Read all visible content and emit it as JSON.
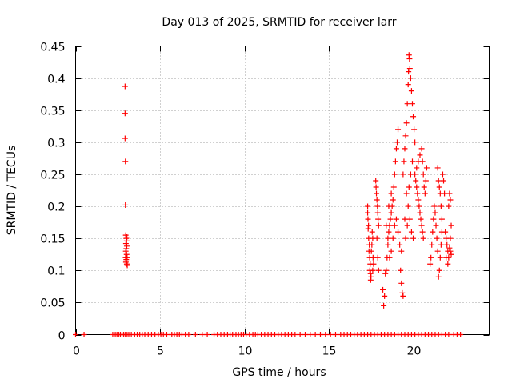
{
  "chart_data": {
    "type": "scatter",
    "title": "Day 013 of 2025, SRMTID for receiver larr",
    "xlabel": "GPS time / hours",
    "ylabel": "SRMTID / TECUs",
    "xlim": [
      0,
      24.5
    ],
    "ylim": [
      0,
      0.45
    ],
    "x_ticks": [
      0,
      5,
      10,
      15,
      20
    ],
    "x_tick_labels": [
      "0",
      "5",
      "10",
      "15",
      "20"
    ],
    "y_ticks": [
      0,
      0.05,
      0.1,
      0.15,
      0.2,
      0.25,
      0.3,
      0.35,
      0.4,
      0.45
    ],
    "y_tick_labels": [
      "0",
      "0.05",
      "0.1",
      "0.15",
      "0.2",
      "0.25",
      "0.3",
      "0.35",
      "0.4",
      "0.45"
    ],
    "grid": true,
    "marker": "+",
    "color": "#ff0000",
    "series": [
      {
        "name": "SRMTID",
        "points": [
          [
            0.0,
            0
          ],
          [
            0.5,
            0
          ],
          [
            2.2,
            0
          ],
          [
            2.35,
            0
          ],
          [
            2.45,
            0
          ],
          [
            2.55,
            0
          ],
          [
            2.65,
            0
          ],
          [
            2.75,
            0
          ],
          [
            2.85,
            0
          ],
          [
            2.95,
            0
          ],
          [
            3.05,
            0
          ],
          [
            3.15,
            0
          ],
          [
            3.3,
            0
          ],
          [
            3.5,
            0
          ],
          [
            3.65,
            0
          ],
          [
            3.8,
            0
          ],
          [
            3.95,
            0
          ],
          [
            4.1,
            0
          ],
          [
            4.3,
            0
          ],
          [
            4.5,
            0
          ],
          [
            4.7,
            0
          ],
          [
            4.9,
            0
          ],
          [
            5.05,
            0
          ],
          [
            5.2,
            0
          ],
          [
            5.4,
            0
          ],
          [
            5.7,
            0
          ],
          [
            5.85,
            0
          ],
          [
            6.0,
            0
          ],
          [
            6.15,
            0
          ],
          [
            6.3,
            0
          ],
          [
            6.5,
            0
          ],
          [
            6.7,
            0
          ],
          [
            7.1,
            0
          ],
          [
            7.5,
            0
          ],
          [
            7.8,
            0
          ],
          [
            8.2,
            0
          ],
          [
            8.4,
            0
          ],
          [
            8.6,
            0
          ],
          [
            8.8,
            0
          ],
          [
            9.0,
            0
          ],
          [
            9.15,
            0
          ],
          [
            9.3,
            0
          ],
          [
            9.5,
            0
          ],
          [
            9.65,
            0
          ],
          [
            9.8,
            0
          ],
          [
            9.95,
            0
          ],
          [
            10.1,
            0
          ],
          [
            10.3,
            0
          ],
          [
            10.5,
            0
          ],
          [
            10.65,
            0
          ],
          [
            10.8,
            0
          ],
          [
            11.0,
            0
          ],
          [
            11.2,
            0
          ],
          [
            11.4,
            0
          ],
          [
            11.6,
            0
          ],
          [
            11.8,
            0
          ],
          [
            12.0,
            0
          ],
          [
            12.2,
            0
          ],
          [
            12.4,
            0
          ],
          [
            12.6,
            0
          ],
          [
            12.8,
            0
          ],
          [
            13.0,
            0
          ],
          [
            13.3,
            0
          ],
          [
            13.6,
            0
          ],
          [
            13.9,
            0
          ],
          [
            14.2,
            0
          ],
          [
            14.5,
            0
          ],
          [
            14.8,
            0
          ],
          [
            15.1,
            0
          ],
          [
            15.4,
            0
          ],
          [
            15.7,
            0
          ],
          [
            15.9,
            0
          ],
          [
            16.1,
            0
          ],
          [
            16.3,
            0
          ],
          [
            16.5,
            0
          ],
          [
            16.7,
            0
          ],
          [
            16.9,
            0
          ],
          [
            17.1,
            0
          ],
          [
            17.3,
            0
          ],
          [
            17.5,
            0
          ],
          [
            17.7,
            0
          ],
          [
            17.9,
            0
          ],
          [
            18.1,
            0
          ],
          [
            18.3,
            0
          ],
          [
            18.5,
            0
          ],
          [
            18.7,
            0
          ],
          [
            18.9,
            0
          ],
          [
            19.1,
            0
          ],
          [
            19.3,
            0
          ],
          [
            19.5,
            0
          ],
          [
            19.7,
            0
          ],
          [
            19.9,
            0
          ],
          [
            20.1,
            0
          ],
          [
            20.3,
            0
          ],
          [
            20.5,
            0
          ],
          [
            20.7,
            0
          ],
          [
            20.9,
            0
          ],
          [
            21.1,
            0
          ],
          [
            21.3,
            0
          ],
          [
            21.5,
            0
          ],
          [
            21.7,
            0
          ],
          [
            21.9,
            0
          ],
          [
            22.1,
            0
          ],
          [
            22.4,
            0
          ],
          [
            22.6,
            0
          ],
          [
            22.8,
            0
          ],
          [
            2.93,
            0.387
          ],
          [
            2.93,
            0.345
          ],
          [
            2.93,
            0.306
          ],
          [
            2.95,
            0.27
          ],
          [
            2.95,
            0.202
          ],
          [
            2.97,
            0.155
          ],
          [
            3.0,
            0.15
          ],
          [
            3.02,
            0.146
          ],
          [
            2.98,
            0.142
          ],
          [
            3.03,
            0.138
          ],
          [
            3.0,
            0.134
          ],
          [
            2.97,
            0.13
          ],
          [
            3.02,
            0.125
          ],
          [
            3.05,
            0.12
          ],
          [
            3.0,
            0.117
          ],
          [
            2.98,
            0.113
          ],
          [
            3.03,
            0.11
          ],
          [
            3.06,
            0.108
          ],
          [
            2.96,
            0.12
          ],
          [
            3.04,
            0.152
          ],
          [
            17.3,
            0.2
          ],
          [
            17.3,
            0.19
          ],
          [
            17.32,
            0.18
          ],
          [
            17.35,
            0.17
          ],
          [
            17.33,
            0.165
          ],
          [
            17.36,
            0.15
          ],
          [
            17.4,
            0.14
          ],
          [
            17.38,
            0.13
          ],
          [
            17.42,
            0.12
          ],
          [
            17.45,
            0.11
          ],
          [
            17.43,
            0.1
          ],
          [
            17.47,
            0.095
          ],
          [
            17.5,
            0.09
          ],
          [
            17.48,
            0.085
          ],
          [
            17.52,
            0.13
          ],
          [
            17.55,
            0.14
          ],
          [
            17.57,
            0.16
          ],
          [
            17.6,
            0.15
          ],
          [
            17.62,
            0.12
          ],
          [
            17.65,
            0.11
          ],
          [
            17.6,
            0.1
          ],
          [
            17.8,
            0.23
          ],
          [
            17.82,
            0.22
          ],
          [
            17.85,
            0.21
          ],
          [
            17.88,
            0.2
          ],
          [
            17.9,
            0.19
          ],
          [
            17.92,
            0.18
          ],
          [
            17.95,
            0.17
          ],
          [
            17.78,
            0.24
          ],
          [
            17.85,
            0.15
          ],
          [
            17.9,
            0.12
          ],
          [
            17.95,
            0.1
          ],
          [
            18.2,
            0.07
          ],
          [
            18.25,
            0.045
          ],
          [
            18.3,
            0.06
          ],
          [
            18.35,
            0.095
          ],
          [
            18.4,
            0.1
          ],
          [
            18.45,
            0.12
          ],
          [
            18.5,
            0.14
          ],
          [
            18.55,
            0.16
          ],
          [
            18.6,
            0.17
          ],
          [
            18.65,
            0.18
          ],
          [
            18.7,
            0.19
          ],
          [
            18.75,
            0.2
          ],
          [
            18.8,
            0.21
          ],
          [
            18.85,
            0.23
          ],
          [
            18.9,
            0.25
          ],
          [
            18.95,
            0.27
          ],
          [
            19.0,
            0.29
          ],
          [
            19.05,
            0.3
          ],
          [
            19.1,
            0.32
          ],
          [
            18.5,
            0.15
          ],
          [
            18.6,
            0.12
          ],
          [
            18.7,
            0.13
          ],
          [
            18.8,
            0.15
          ],
          [
            18.9,
            0.17
          ],
          [
            19.0,
            0.18
          ],
          [
            19.1,
            0.16
          ],
          [
            19.2,
            0.14
          ],
          [
            19.3,
            0.13
          ],
          [
            19.25,
            0.1
          ],
          [
            19.3,
            0.08
          ],
          [
            19.35,
            0.065
          ],
          [
            19.4,
            0.06
          ],
          [
            18.4,
            0.17
          ],
          [
            18.55,
            0.2
          ],
          [
            18.7,
            0.22
          ],
          [
            19.4,
            0.25
          ],
          [
            19.45,
            0.27
          ],
          [
            19.5,
            0.29
          ],
          [
            19.55,
            0.31
          ],
          [
            19.6,
            0.33
          ],
          [
            19.65,
            0.36
          ],
          [
            19.7,
            0.39
          ],
          [
            19.72,
            0.41
          ],
          [
            19.75,
            0.436
          ],
          [
            19.78,
            0.43
          ],
          [
            19.8,
            0.415
          ],
          [
            19.85,
            0.4
          ],
          [
            19.9,
            0.38
          ],
          [
            19.95,
            0.36
          ],
          [
            20.0,
            0.34
          ],
          [
            20.05,
            0.32
          ],
          [
            20.1,
            0.3
          ],
          [
            19.6,
            0.22
          ],
          [
            19.7,
            0.2
          ],
          [
            19.8,
            0.18
          ],
          [
            19.9,
            0.16
          ],
          [
            20.0,
            0.15
          ],
          [
            19.5,
            0.18
          ],
          [
            19.55,
            0.15
          ],
          [
            19.65,
            0.17
          ],
          [
            19.75,
            0.23
          ],
          [
            19.85,
            0.25
          ],
          [
            19.95,
            0.27
          ],
          [
            20.1,
            0.25
          ],
          [
            20.15,
            0.24
          ],
          [
            20.2,
            0.23
          ],
          [
            20.25,
            0.22
          ],
          [
            20.3,
            0.21
          ],
          [
            20.35,
            0.2
          ],
          [
            20.4,
            0.19
          ],
          [
            20.45,
            0.18
          ],
          [
            20.5,
            0.17
          ],
          [
            20.55,
            0.16
          ],
          [
            20.6,
            0.15
          ],
          [
            20.2,
            0.26
          ],
          [
            20.3,
            0.27
          ],
          [
            20.4,
            0.28
          ],
          [
            20.5,
            0.29
          ],
          [
            20.55,
            0.27
          ],
          [
            20.6,
            0.25
          ],
          [
            20.65,
            0.23
          ],
          [
            20.7,
            0.22
          ],
          [
            20.75,
            0.24
          ],
          [
            20.8,
            0.26
          ],
          [
            21.0,
            0.11
          ],
          [
            21.05,
            0.12
          ],
          [
            21.1,
            0.14
          ],
          [
            21.15,
            0.16
          ],
          [
            21.2,
            0.18
          ],
          [
            21.25,
            0.2
          ],
          [
            21.3,
            0.19
          ],
          [
            21.35,
            0.17
          ],
          [
            21.4,
            0.15
          ],
          [
            21.45,
            0.13
          ],
          [
            21.5,
            0.09
          ],
          [
            21.55,
            0.1
          ],
          [
            21.6,
            0.12
          ],
          [
            21.65,
            0.14
          ],
          [
            21.7,
            0.16
          ],
          [
            21.45,
            0.26
          ],
          [
            21.5,
            0.24
          ],
          [
            21.55,
            0.23
          ],
          [
            21.6,
            0.22
          ],
          [
            21.65,
            0.2
          ],
          [
            21.7,
            0.18
          ],
          [
            21.75,
            0.25
          ],
          [
            21.8,
            0.24
          ],
          [
            21.85,
            0.22
          ],
          [
            21.9,
            0.16
          ],
          [
            21.95,
            0.15
          ],
          [
            22.0,
            0.14
          ],
          [
            22.05,
            0.13
          ],
          [
            22.1,
            0.12
          ],
          [
            22.15,
            0.135
          ],
          [
            22.2,
            0.15
          ],
          [
            22.25,
            0.17
          ],
          [
            22.1,
            0.2
          ],
          [
            22.15,
            0.22
          ],
          [
            22.2,
            0.21
          ],
          [
            21.95,
            0.12
          ],
          [
            22.05,
            0.11
          ],
          [
            22.2,
            0.13
          ],
          [
            22.25,
            0.125
          ]
        ]
      }
    ]
  }
}
